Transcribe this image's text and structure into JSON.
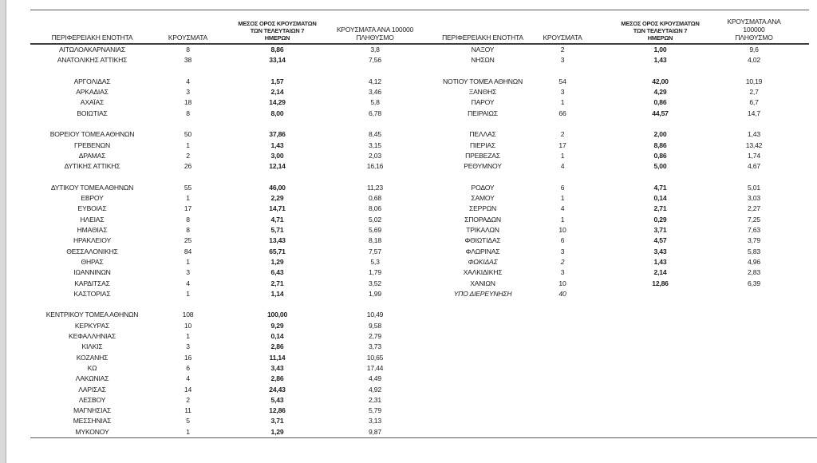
{
  "page": {
    "background": "#ffffff",
    "rule_color": "#595959",
    "text_color": "#1c1c1c",
    "margin_strip_color": "#d9d9d9"
  },
  "columns": {
    "region": "ΠΕΡΙΦΕΡΕΙΑΚΗ ΕΝΟΤΗΤΑ",
    "cases": "ΚΡΟΥΣΜΑΤΑ",
    "avg7": "ΜΕΣΟΣ ΟΡΟΣ ΚΡΟΥΣΜΑΤΩΝ\nΤΩΝ ΤΕΛΕΥΤΑΙΩΝ 7\nΗΜΕΡΩΝ",
    "per100k": "ΚΡΟΥΣΜΑΤΑ ΑΝΑ 100000\nΠΛΗΘΥΣΜΟ"
  },
  "table": {
    "rows": [
      {
        "l": [
          "ΑΙΤΩΛΟΑΚΑΡΝΑΝΙΑΣ",
          "8",
          "8,86",
          "3,8"
        ],
        "r": [
          "ΝΑΞΟΥ",
          "2",
          "1,00",
          "9,6"
        ]
      },
      {
        "l": [
          "ΑΝΑΤΟΛΙΚΗΣ ΑΤΤΙΚΗΣ",
          "38",
          "33,14",
          "7,56"
        ],
        "r": [
          "ΝΗΣΩΝ",
          "3",
          "1,43",
          "4,02"
        ]
      },
      {
        "l": null,
        "r": null
      },
      {
        "l": [
          "ΑΡΓΟΛΙΔΑΣ",
          "4",
          "1,57",
          "4,12"
        ],
        "r": [
          "ΝΟΤΙΟΥ ΤΟΜΕΑ ΑΘΗΝΩΝ",
          "54",
          "42,00",
          "10,19"
        ]
      },
      {
        "l": [
          "ΑΡΚΑΔΙΑΣ",
          "3",
          "2,14",
          "3,46"
        ],
        "r": [
          "ΞΑΝΘΗΣ",
          "3",
          "4,29",
          "2,7"
        ]
      },
      {
        "l": [
          "ΑΧΑΪΑΣ",
          "18",
          "14,29",
          "5,8"
        ],
        "r": [
          "ΠΑΡΟΥ",
          "1",
          "0,86",
          "6,7"
        ]
      },
      {
        "l": [
          "ΒΟΙΩΤΙΑΣ",
          "8",
          "8,00",
          "6,78"
        ],
        "r": [
          "ΠΕΙΡΑΙΩΣ",
          "66",
          "44,57",
          "14,7"
        ]
      },
      {
        "l": null,
        "r": null
      },
      {
        "l": [
          "ΒΟΡΕΙΟΥ ΤΟΜΕΑ ΑΘΗΝΩΝ",
          "50",
          "37,86",
          "8,45"
        ],
        "r": [
          "ΠΕΛΛΑΣ",
          "2",
          "2,00",
          "1,43"
        ]
      },
      {
        "l": [
          "ΓΡΕΒΕΝΩΝ",
          "1",
          "1,43",
          "3,15"
        ],
        "r": [
          "ΠΙΕΡΙΑΣ",
          "17",
          "8,86",
          "13,42"
        ]
      },
      {
        "l": [
          "ΔΡΑΜΑΣ",
          "2",
          "3,00",
          "2,03"
        ],
        "r": [
          "ΠΡΕΒΕΖΑΣ",
          "1",
          "0,86",
          "1,74"
        ]
      },
      {
        "l": [
          "ΔΥΤΙΚΗΣ ΑΤΤΙΚΗΣ",
          "26",
          "12,14",
          "16,16"
        ],
        "r": [
          "ΡΕΘΥΜΝΟΥ",
          "4",
          "5,00",
          "4,67"
        ]
      },
      {
        "l": null,
        "r": null
      },
      {
        "l": [
          "ΔΥΤΙΚΟΥ ΤΟΜΕΑ ΑΘΗΝΩΝ",
          "55",
          "46,00",
          "11,23"
        ],
        "r": [
          "ΡΟΔΟΥ",
          "6",
          "4,71",
          "5,01"
        ]
      },
      {
        "l": [
          "ΕΒΡΟΥ",
          "1",
          "2,29",
          "0,68"
        ],
        "r": [
          "ΣΑΜΟΥ",
          "1",
          "0,14",
          "3,03"
        ]
      },
      {
        "l": [
          "ΕΥΒΟΙΑΣ",
          "17",
          "14,71",
          "8,06"
        ],
        "r": [
          "ΣΕΡΡΩΝ",
          "4",
          "2,71",
          "2,27"
        ]
      },
      {
        "l": [
          "ΗΛΕΙΑΣ",
          "8",
          "4,71",
          "5,02"
        ],
        "r": [
          "ΣΠΟΡΑΔΩΝ",
          "1",
          "0,29",
          "7,25"
        ]
      },
      {
        "l": [
          "ΗΜΑΘΙΑΣ",
          "8",
          "5,71",
          "5,69"
        ],
        "r": [
          "ΤΡΙΚΑΛΩΝ",
          "10",
          "3,71",
          "7,63"
        ]
      },
      {
        "l": [
          "ΗΡΑΚΛΕΙΟΥ",
          "25",
          "13,43",
          "8,18"
        ],
        "r": [
          "ΦΘΙΩΤΙΔΑΣ",
          "6",
          "4,57",
          "3,79"
        ]
      },
      {
        "l": [
          "ΘΕΣΣΑΛΟΝΙΚΗΣ",
          "84",
          "65,71",
          "7,57"
        ],
        "r": [
          "ΦΛΩΡΙΝΑΣ",
          "3",
          "3,43",
          "5,83"
        ]
      },
      {
        "l": [
          "ΘΗΡΑΣ",
          "1",
          "1,29",
          "5,3"
        ],
        "r": [
          "ΦΩΚΙΔΑΣ",
          "2",
          "1,43",
          "4,96"
        ],
        "ri": true
      },
      {
        "l": [
          "ΙΩΑΝΝΙΝΩΝ",
          "3",
          "6,43",
          "1,79"
        ],
        "r": [
          "ΧΑΛΚΙΔΙΚΗΣ",
          "3",
          "2,14",
          "2,83"
        ]
      },
      {
        "l": [
          "ΚΑΡΔΙΤΣΑΣ",
          "4",
          "2,71",
          "3,52"
        ],
        "r": [
          "ΧΑΝΙΩΝ",
          "10",
          "12,86",
          "6,39"
        ]
      },
      {
        "l": [
          "ΚΑΣΤΟΡΙΑΣ",
          "1",
          "1,14",
          "1,99"
        ],
        "r": [
          "ΥΠΟ ΔΙΕΡΕΥΝΗΣΗ",
          "40",
          "",
          ""
        ],
        "ri": true
      },
      {
        "l": null,
        "r": null
      },
      {
        "l": [
          "ΚΕΝΤΡΙΚΟΥ ΤΟΜΕΑ ΑΘΗΝΩΝ",
          "108",
          "100,00",
          "10,49"
        ],
        "r": null
      },
      {
        "l": [
          "ΚΕΡΚΥΡΑΣ",
          "10",
          "9,29",
          "9,58"
        ],
        "r": null
      },
      {
        "l": [
          "ΚΕΦΑΛΛΗΝΙΑΣ",
          "1",
          "0,14",
          "2,79"
        ],
        "r": null
      },
      {
        "l": [
          "ΚΙΛΚΙΣ",
          "3",
          "2,86",
          "3,73"
        ],
        "r": null
      },
      {
        "l": [
          "ΚΟΖΑΝΗΣ",
          "16",
          "11,14",
          "10,65"
        ],
        "r": null
      },
      {
        "l": [
          "ΚΩ",
          "6",
          "3,43",
          "17,44"
        ],
        "r": null
      },
      {
        "l": [
          "ΛΑΚΩΝΙΑΣ",
          "4",
          "2,86",
          "4,49"
        ],
        "r": null
      },
      {
        "l": [
          "ΛΑΡΙΣΑΣ",
          "14",
          "24,43",
          "4,92"
        ],
        "r": null
      },
      {
        "l": [
          "ΛΕΣΒΟΥ",
          "2",
          "5,43",
          "2,31"
        ],
        "r": null
      },
      {
        "l": [
          "ΜΑΓΝΗΣΙΑΣ",
          "11",
          "12,86",
          "5,79"
        ],
        "r": null
      },
      {
        "l": [
          "ΜΕΣΣΗΝΙΑΣ",
          "5",
          "3,71",
          "3,13"
        ],
        "r": null
      },
      {
        "l": [
          "ΜΥΚΟΝΟΥ",
          "1",
          "1,29",
          "9,87"
        ],
        "r": null
      }
    ]
  }
}
